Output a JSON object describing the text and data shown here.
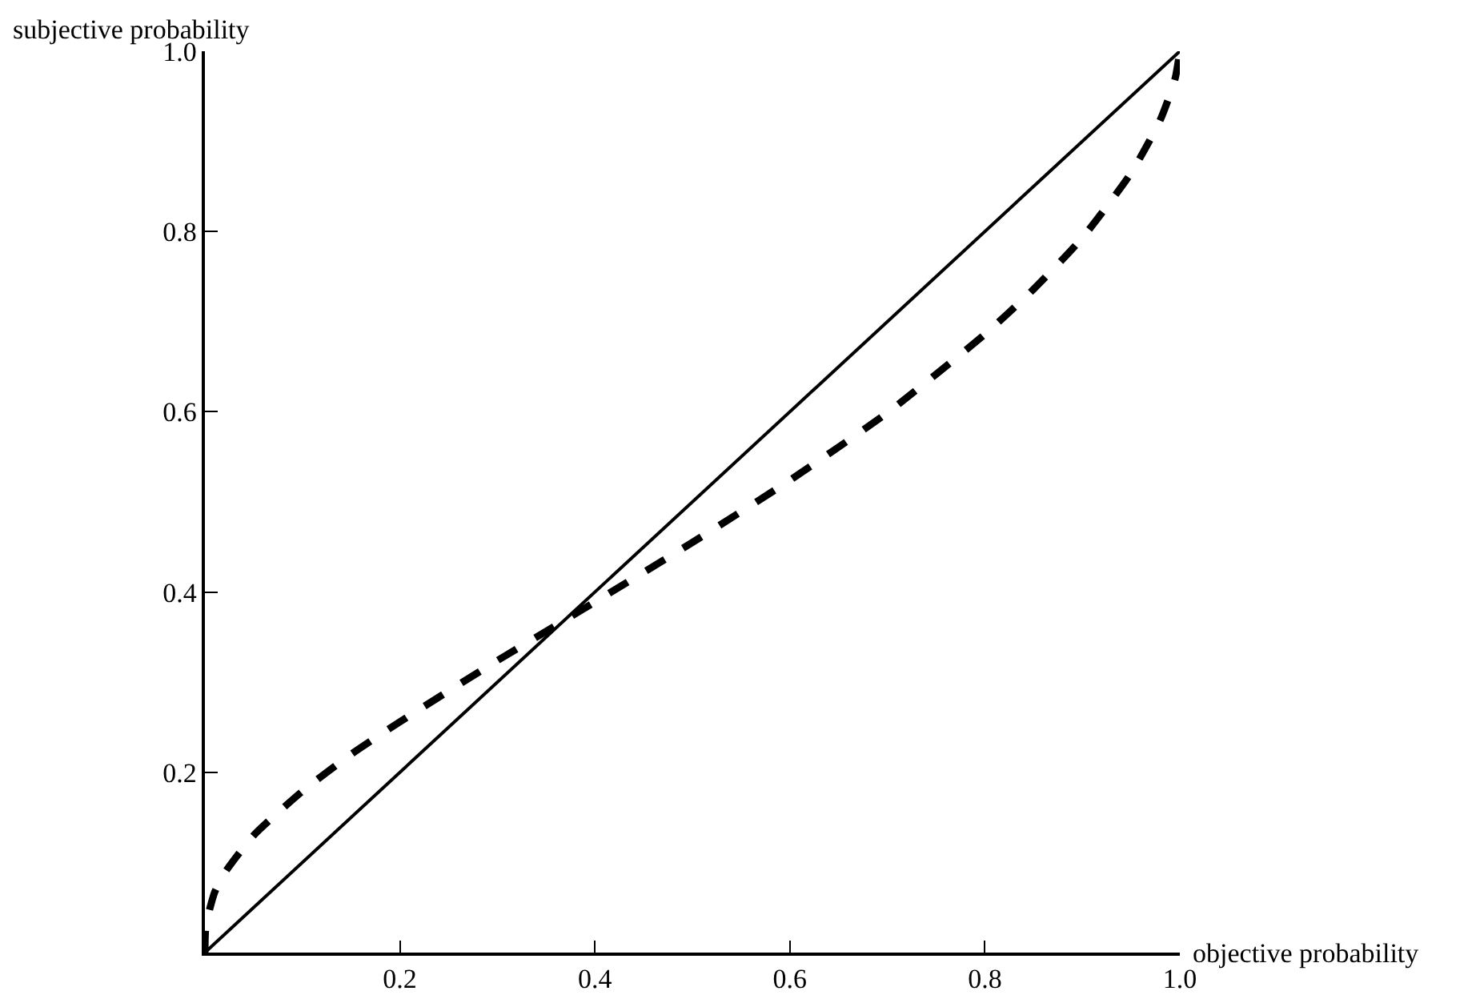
{
  "chart_data": {
    "type": "line",
    "xlabel": "objective probability",
    "ylabel": "subjective probability",
    "xlim": [
      0,
      1
    ],
    "ylim": [
      0,
      1
    ],
    "xticks": [
      0.2,
      0.4,
      0.6,
      0.8,
      {
        "value": 1,
        "label": "1.0"
      }
    ],
    "yticks": [
      0.2,
      0.4,
      0.6,
      0.8,
      {
        "value": 1,
        "label": "1.0"
      }
    ],
    "grid": false,
    "marker": "none",
    "series": [
      {
        "color": "#000000",
        "line_style": "solid",
        "x": [
          0,
          1
        ],
        "values": [
          0,
          1
        ]
      },
      {
        "color": "#000000",
        "line_style": "dashed",
        "x": [
          0,
          0.001,
          0.01,
          0.02,
          0.05,
          0.1,
          0.15,
          0.2,
          0.3,
          0.368,
          0.4,
          0.5,
          0.6,
          0.7,
          0.8,
          0.85,
          0.9,
          0.95,
          0.98,
          0.995,
          1
        ],
        "values": [
          0,
          0.03,
          0.067,
          0.088,
          0.13,
          0.179,
          0.22,
          0.256,
          0.324,
          0.368,
          0.389,
          0.455,
          0.524,
          0.599,
          0.686,
          0.736,
          0.793,
          0.865,
          0.924,
          0.969,
          1
        ]
      }
    ]
  }
}
